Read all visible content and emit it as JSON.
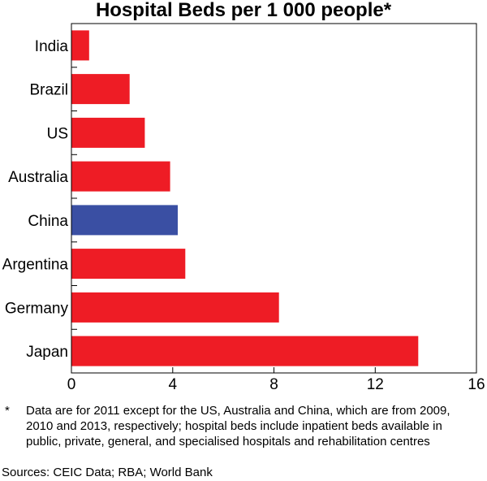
{
  "chart_data": {
    "type": "bar",
    "orientation": "horizontal",
    "title": "Hospital Beds per 1 000 people*",
    "categories": [
      "India",
      "Brazil",
      "US",
      "Australia",
      "China",
      "Argentina",
      "Germany",
      "Japan"
    ],
    "values": [
      0.7,
      2.3,
      2.9,
      3.9,
      4.2,
      4.5,
      8.2,
      13.7
    ],
    "highlight": "China",
    "colors": {
      "default": "#ee1c25",
      "highlight": "#3a4fa3"
    },
    "xlim": [
      0,
      16
    ],
    "xticks": [
      0,
      4,
      8,
      12,
      16
    ],
    "grid": false,
    "xlabel": "",
    "ylabel": ""
  },
  "footnote": {
    "marker": "*",
    "text": "Data are for 2011 except for the US, Australia and China, which are from 2009, 2010 and 2013, respectively; hospital beds include inpatient beds available in public, private, general, and specialised hospitals and rehabilitation centres"
  },
  "sources": "Sources:  CEIC Data; RBA; World Bank"
}
